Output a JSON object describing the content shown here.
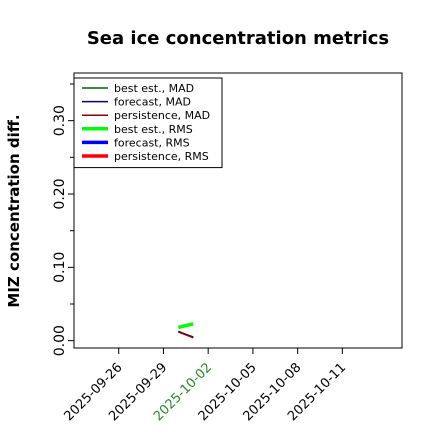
{
  "chart_data": {
    "type": "line",
    "title": "Sea ice concentration metrics",
    "ylabel": "MIZ concentration diff.",
    "xlabel": "",
    "xlim": [
      "2025-09-23",
      "2025-10-15"
    ],
    "ylim": [
      -0.01,
      0.365
    ],
    "y_ticks": [
      0.0,
      0.1,
      0.2,
      0.3
    ],
    "y_tick_labels": [
      "0.00",
      "0.10",
      "0.20",
      "0.30"
    ],
    "x_ticks": [
      "2025-09-26",
      "2025-09-29",
      "2025-10-02",
      "2025-10-05",
      "2025-10-08",
      "2025-10-11"
    ],
    "x_tick_labels": [
      "2025-09-26",
      "2025-09-29",
      "2025-10-02",
      "2025-10-05",
      "2025-10-08",
      "2025-10-11"
    ],
    "highlighted_tick": "2025-10-02",
    "highlight_color": "#228b22",
    "legend_position": "top-left",
    "grid": false,
    "series": [
      {
        "name": "best est., MAD",
        "color": "#006400",
        "width": 1.5,
        "x": [
          "2025-09-30",
          "2025-10-01"
        ],
        "y": [
          0.013,
          0.004
        ]
      },
      {
        "name": "forecast,  MAD",
        "color": "#00008b",
        "width": 1.5,
        "x": [
          "2025-09-30",
          "2025-10-01"
        ],
        "y": [
          0.012,
          0.005
        ]
      },
      {
        "name": "persistence, MAD",
        "color": "#8b0000",
        "width": 1.5,
        "x": [
          "2025-09-30",
          "2025-10-01"
        ],
        "y": [
          0.012,
          0.004
        ]
      },
      {
        "name": "best est., RMS",
        "color": "#00ff00",
        "width": 3.5,
        "x": [
          "2025-09-30",
          "2025-10-01"
        ],
        "y": [
          0.018,
          0.023
        ]
      },
      {
        "name": "forecast,  RMS",
        "color": "#0000ff",
        "width": 3.5,
        "x": [],
        "y": []
      },
      {
        "name": "persistence, RMS",
        "color": "#ff0000",
        "width": 3.5,
        "x": [],
        "y": []
      }
    ]
  }
}
